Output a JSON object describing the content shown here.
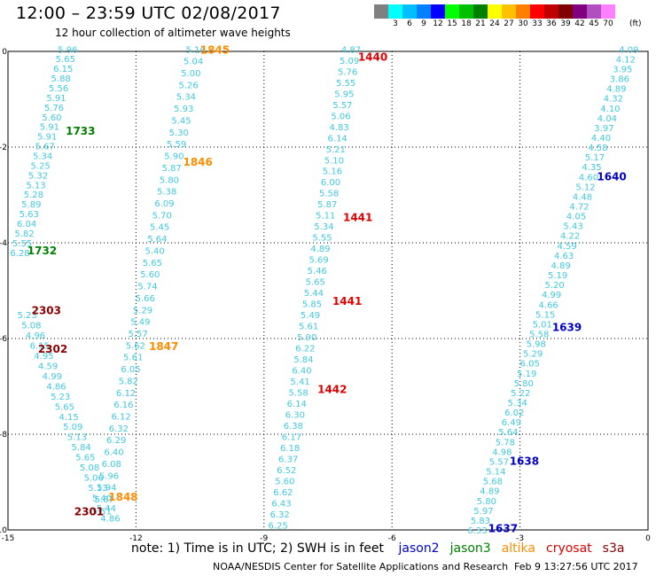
{
  "header": {
    "title": "12:00 – 23:59 UTC 02/08/2017",
    "subtitle": "12 hour collection of altimeter wave heights"
  },
  "legend": {
    "colors": [
      "#808080",
      "#00ffff",
      "#00bfff",
      "#0080ff",
      "#0000ff",
      "#00ff00",
      "#00c000",
      "#008000",
      "#ffff00",
      "#ffc000",
      "#ff8000",
      "#ff0000",
      "#c00000",
      "#800000",
      "#800080",
      "#b050c0",
      "#ff80ff",
      "#ffffff"
    ],
    "labels": [
      "3",
      "6",
      "9",
      "12",
      "15",
      "18",
      "21",
      "24",
      "27",
      "30",
      "33",
      "36",
      "39",
      "42",
      "45",
      "70"
    ],
    "unit": "(ft)"
  },
  "footer": {
    "note": "note:  1) Time is in UTC;  2) SWH is in feet",
    "satellites": [
      {
        "name": "jason2",
        "color": "#0000c8"
      },
      {
        "name": "jason3",
        "color": "#008000"
      },
      {
        "name": "altika",
        "color": "#ff8c00"
      },
      {
        "name": "cryosat",
        "color": "#e00000"
      },
      {
        "name": "s3a",
        "color": "#8b0000"
      }
    ],
    "credit": "NOAA/NESDIS Center for Satellite Applications and Research",
    "timestamp": "Feb  9 13:27:56 UTC 2017"
  },
  "chart_data": {
    "type": "scatter",
    "title": "12:00 – 23:59 UTC 02/08/2017",
    "xlim": [
      -15,
      0
    ],
    "ylim": [
      -10,
      0
    ],
    "xticks": [
      "-15",
      "-12",
      "-9",
      "-6",
      "-3",
      "0"
    ],
    "yticks": [
      "0",
      "-2",
      "-4",
      "-6",
      "-8",
      "-10"
    ],
    "grid": true,
    "value_color": "#40c8e0",
    "tracks": [
      {
        "values": [
          5.96,
          5.65,
          6.15,
          5.88,
          5.56,
          5.91,
          5.76,
          5.6,
          5.91,
          5.91,
          5.67,
          5.34,
          5.25,
          5.32,
          5.13,
          5.28,
          5.89,
          5.63,
          6.04,
          5.82,
          5.55,
          6.28
        ],
        "x0": -13.6,
        "y0": 0.05,
        "x1": -14.72,
        "y1": -4.2
      },
      {
        "values": [
          5.16,
          5.04,
          5.0,
          5.26,
          5.34,
          5.93,
          5.45,
          5.3,
          5.59,
          5.9,
          5.87,
          5.8,
          5.38,
          6.09,
          5.7,
          5.45,
          5.64,
          5.4,
          5.65,
          5.6,
          5.74,
          5.66,
          5.29,
          5.49,
          5.57,
          5.62,
          5.61,
          6.05,
          5.82,
          6.12,
          6.16,
          6.12,
          6.32,
          6.29,
          6.4,
          6.08,
          5.96,
          5.94,
          5.67,
          5.51
        ],
        "x0": -10.6,
        "y0": 0.05,
        "x1": -12.8,
        "y1": -9.6
      },
      {
        "values": [
          4.87,
          5.09,
          5.76,
          5.55,
          5.95,
          5.57,
          5.06,
          4.83,
          6.14,
          5.21,
          5.1,
          5.16,
          6.0,
          5.58,
          5.87,
          5.11,
          5.34,
          5.55,
          4.89,
          5.69,
          5.46,
          5.65,
          5.44,
          5.85,
          5.49,
          5.61,
          5.9,
          6.22,
          5.84,
          6.4,
          5.41,
          5.58,
          6.14,
          6.3,
          6.38,
          6.17,
          6.18,
          6.37,
          6.52,
          5.6,
          6.62,
          6.43,
          6.32,
          6.25
        ],
        "x0": -6.96,
        "y0": 0.05,
        "x1": -8.67,
        "y1": -9.9
      },
      {
        "values": [
          4.09,
          4.12,
          3.95,
          3.86,
          4.89,
          4.32,
          4.1,
          4.04,
          3.97,
          4.4,
          4.58,
          5.17,
          4.35,
          4.6,
          5.12,
          4.48,
          4.72,
          4.05,
          5.43,
          4.22,
          4.59,
          4.63,
          4.89,
          5.19,
          5.2,
          4.99,
          4.66,
          5.15,
          5.01,
          5.58,
          5.98,
          5.29,
          6.05,
          5.19,
          5.8,
          5.22,
          5.34,
          6.02,
          6.49,
          5.64,
          5.78,
          4.98,
          5.57,
          5.14,
          5.68,
          4.89,
          5.8,
          5.97,
          5.83,
          6.33
        ],
        "x0": -0.45,
        "y0": 0.05,
        "x1": -4.0,
        "y1": -10.0
      },
      {
        "values": [
          5.23,
          5.08,
          4.96,
          6.15,
          4.95,
          4.59,
          4.99,
          4.86,
          5.23,
          5.65,
          4.15,
          5.09,
          5.13,
          5.84,
          5.65,
          5.08,
          5.06,
          5.13,
          5.4,
          5.44,
          4.86
        ],
        "x0": -14.55,
        "y0": -5.5,
        "x1": -12.6,
        "y1": -9.75
      }
    ],
    "annotations": [
      {
        "text": "1845",
        "color": "#ff8c00",
        "x": -10.15,
        "y": 0.05
      },
      {
        "text": "1846",
        "color": "#ff8c00",
        "x": -10.55,
        "y": -2.3
      },
      {
        "text": "1847",
        "color": "#ff8c00",
        "x": -11.35,
        "y": -6.15
      },
      {
        "text": "1848",
        "color": "#ff8c00",
        "x": -12.3,
        "y": -9.3
      },
      {
        "text": "1733",
        "color": "#008000",
        "x": -13.3,
        "y": -1.65
      },
      {
        "text": "1732",
        "color": "#008000",
        "x": -14.2,
        "y": -4.15
      },
      {
        "text": "1440",
        "color": "#e00000",
        "x": -6.45,
        "y": -0.1
      },
      {
        "text": "1441",
        "color": "#e00000",
        "x": -6.8,
        "y": -3.45
      },
      {
        "text": "1441",
        "color": "#e00000",
        "x": -7.05,
        "y": -5.2
      },
      {
        "text": "1442",
        "color": "#e00000",
        "x": -7.4,
        "y": -7.05
      },
      {
        "text": "1640",
        "color": "#0000c8",
        "x": -0.85,
        "y": -2.6
      },
      {
        "text": "1639",
        "color": "#0000c8",
        "x": -1.9,
        "y": -5.75
      },
      {
        "text": "1638",
        "color": "#0000c8",
        "x": -2.9,
        "y": -8.55
      },
      {
        "text": "1637",
        "color": "#0000c8",
        "x": -3.4,
        "y": -9.95
      },
      {
        "text": "2303",
        "color": "#8b0000",
        "x": -14.1,
        "y": -5.4
      },
      {
        "text": "2302",
        "color": "#8b0000",
        "x": -13.95,
        "y": -6.2
      },
      {
        "text": "2301",
        "color": "#8b0000",
        "x": -13.1,
        "y": -9.6
      }
    ]
  }
}
